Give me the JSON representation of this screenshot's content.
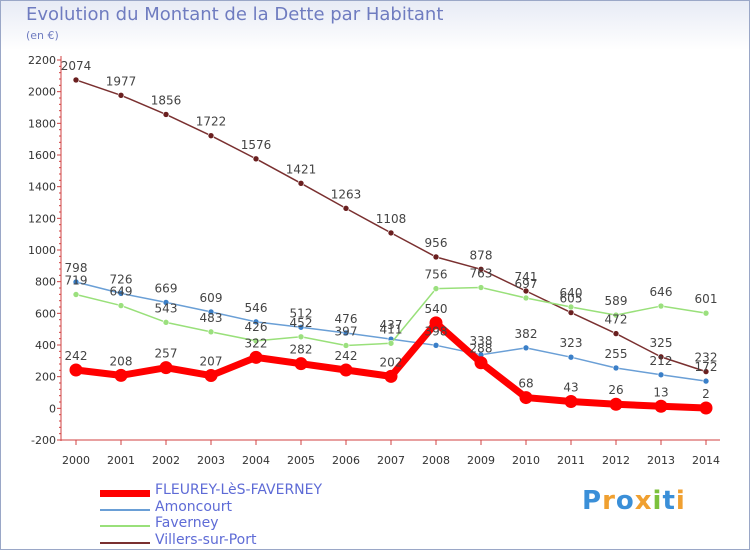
{
  "chart_data": {
    "type": "line",
    "title": "Evolution du Montant de la Dette par Habitant",
    "subtitle": "(en €)",
    "x": [
      "2000",
      "2001",
      "2002",
      "2003",
      "2004",
      "2005",
      "2006",
      "2007",
      "2008",
      "2009",
      "2010",
      "2011",
      "2012",
      "2013",
      "2014"
    ],
    "ylim": [
      -200,
      2200
    ],
    "yticks": [
      -200,
      0,
      200,
      400,
      600,
      800,
      1000,
      1200,
      1400,
      1600,
      1800,
      2000,
      2200
    ],
    "grid": false,
    "legend_position": "bottom-left",
    "series": [
      {
        "name": "FLEUREY-LèS-FAVERNEY",
        "color": "#ff0000",
        "values": [
          242,
          208,
          257,
          207,
          322,
          282,
          242,
          202,
          540,
          288,
          68,
          43,
          26,
          13,
          2
        ]
      },
      {
        "name": "Amoncourt",
        "color": "#6a9fd6",
        "values": [
          798,
          726,
          669,
          609,
          546,
          512,
          476,
          437,
          398,
          338,
          382,
          323,
          255,
          212,
          172
        ]
      },
      {
        "name": "Faverney",
        "color": "#99e07a",
        "values": [
          719,
          649,
          543,
          483,
          426,
          452,
          397,
          411,
          756,
          763,
          697,
          640,
          589,
          646,
          601
        ]
      },
      {
        "name": "Villers-sur-Port",
        "color": "#7a3030",
        "values": [
          2074,
          1977,
          1856,
          1722,
          1576,
          1421,
          1263,
          1108,
          956,
          878,
          741,
          605,
          472,
          325,
          232
        ]
      }
    ]
  },
  "brand": {
    "text": "Proxiti",
    "letters": [
      "P",
      "r",
      "o",
      "x",
      "i",
      "t",
      "i"
    ],
    "colors": [
      "#3a8fd8",
      "#f0a030",
      "#3a8fd8",
      "#f0a030",
      "#7cc13c",
      "#3a8fd8",
      "#f0a030"
    ]
  }
}
